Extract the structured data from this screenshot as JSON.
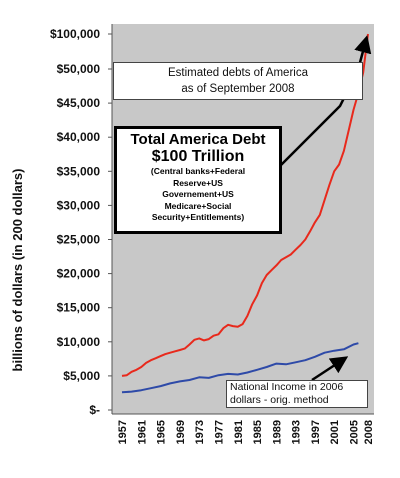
{
  "chart_data": {
    "type": "line",
    "ylabel": "billions of dollars (in 200  dollars)",
    "xlabel": "",
    "y_tick_labels": [
      "$-",
      "$5,000",
      "$10,000",
      "$15,000",
      "$20,000",
      "$25,000",
      "$30,000",
      "$35,000",
      "$40,000",
      "$45,000",
      "$50,000",
      "$100,000"
    ],
    "y_tick_values": [
      0,
      5000,
      10000,
      15000,
      20000,
      25000,
      30000,
      35000,
      40000,
      45000,
      50000,
      100000
    ],
    "y_axis_note": "axis break between $50,000 and $100,000",
    "x_tick_labels": [
      "1957",
      "1961",
      "1965",
      "1969",
      "1973",
      "1977",
      "1981",
      "1985",
      "1989",
      "1993",
      "1997",
      "2001",
      "2005",
      "2008"
    ],
    "x_range": [
      1957,
      2008
    ],
    "grid": false,
    "colors": {
      "plot_bg": "#c8c8c8",
      "debt": "#e8291c",
      "income": "#2e4aa8",
      "arrows": "#000000"
    },
    "series": [
      {
        "name": "",
        "color": "#e8291c",
        "x": [
          1957,
          1958,
          1959,
          1960,
          1961,
          1962,
          1963,
          1964,
          1965,
          1966,
          1967,
          1968,
          1969,
          1970,
          1971,
          1972,
          1973,
          1974,
          1975,
          1976,
          1977,
          1978,
          1979,
          1980,
          1981,
          1982,
          1983,
          1984,
          1985,
          1986,
          1987,
          1988,
          1989,
          1990,
          1991,
          1992,
          1993,
          1994,
          1995,
          1996,
          1997,
          1998,
          1999,
          2000,
          2001,
          2002,
          2003,
          2004,
          2005,
          2006,
          2007,
          2008
        ],
        "values": [
          5000,
          5100,
          5600,
          5900,
          6300,
          6900,
          7300,
          7600,
          7900,
          8200,
          8400,
          8600,
          8800,
          9000,
          9600,
          10300,
          10500,
          10200,
          10400,
          10900,
          11100,
          12000,
          12500,
          12300,
          12200,
          12600,
          13800,
          15500,
          16800,
          18600,
          19800,
          20500,
          21200,
          22000,
          22400,
          22800,
          23500,
          24200,
          25000,
          26200,
          27500,
          28600,
          30800,
          33000,
          35000,
          36000,
          38000,
          41000,
          44000,
          46500,
          49500,
          100000
        ]
      },
      {
        "name": "",
        "color": "#2e4aa8",
        "x": [
          1957,
          1959,
          1961,
          1963,
          1965,
          1967,
          1969,
          1971,
          1973,
          1975,
          1977,
          1979,
          1981,
          1983,
          1985,
          1987,
          1989,
          1991,
          1993,
          1995,
          1997,
          1999,
          2001,
          2003,
          2005,
          2006
        ],
        "values": [
          2600,
          2700,
          2900,
          3200,
          3500,
          3900,
          4200,
          4400,
          4800,
          4700,
          5100,
          5300,
          5200,
          5500,
          5900,
          6300,
          6800,
          6700,
          7000,
          7300,
          7800,
          8400,
          8700,
          8900,
          9600,
          9800
        ]
      }
    ],
    "annotations": {
      "title_box": [
        "Estimated debts of  America",
        "as of September 2008"
      ],
      "total_box": {
        "line1": "Total America Debt",
        "line2": "$100 Trillion",
        "lines": [
          "(Central banks+Federal",
          "Reserve+US",
          "Governement+US",
          "Medicare+Social",
          "Security+Entitlements)"
        ]
      },
      "income_box": [
        "National Income in 2006",
        "dollars - orig. method"
      ]
    }
  }
}
